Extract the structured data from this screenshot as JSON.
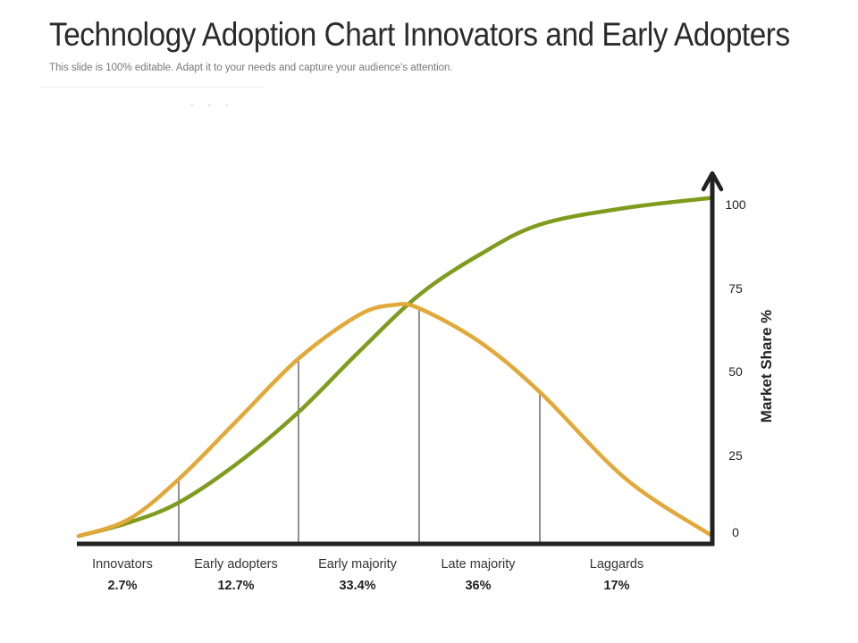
{
  "slide": {
    "title": "Technology Adoption Chart Innovators and Early Adopters",
    "subtitle": "This slide is 100% editable. Adapt it to your needs and capture your audience's attention."
  },
  "chart_data": {
    "type": "line",
    "ylabel": "Market Share %",
    "ylim": [
      0,
      100
    ],
    "yticks": [
      "0",
      "25",
      "50",
      "75",
      "100"
    ],
    "categories": [
      "Innovators",
      "Early adopters",
      "Early majority",
      "Late majority",
      "Laggards"
    ],
    "values": [
      "2.7%",
      "12.7%",
      "33.4%",
      "36%",
      "17%"
    ],
    "series": [
      {
        "color": "#7f9c1e",
        "x": [
          0,
          0.5,
          1,
          1.5,
          2,
          2.5,
          3,
          3.5,
          4,
          4.5,
          5
        ],
        "y": [
          1,
          5,
          11,
          23,
          38,
          56,
          73,
          85,
          94,
          99,
          102
        ]
      },
      {
        "color": "#e2a93a",
        "x": [
          0,
          0.5,
          1,
          1.5,
          2,
          2.5,
          2.79,
          3,
          3.5,
          4,
          4.5,
          5
        ],
        "y": [
          1,
          6,
          18,
          36,
          54,
          67,
          70,
          69,
          59,
          44,
          18,
          1
        ]
      }
    ],
    "dividers": [
      1,
      2,
      3,
      4
    ],
    "divider_heights": [
      18,
      54,
      69,
      44
    ],
    "grid": false
  }
}
